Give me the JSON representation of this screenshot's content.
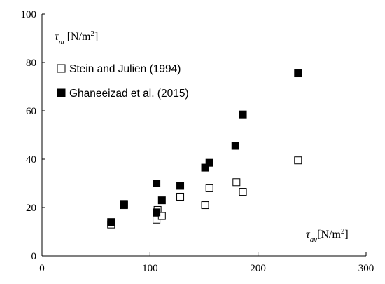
{
  "chart_data": {
    "type": "scatter",
    "xlim": [
      0,
      300
    ],
    "ylim": [
      0,
      100
    ],
    "x_ticks": [
      0,
      100,
      200,
      300
    ],
    "y_ticks": [
      0,
      20,
      40,
      60,
      80,
      100
    ],
    "grid": false,
    "legend_position": "top-left",
    "x_axis_label": {
      "symbol": "τ",
      "subscript": "av",
      "unit": "[N/m",
      "sup": "2",
      "close": "]"
    },
    "y_axis_label": {
      "symbol": "τ",
      "subscript": "m",
      "unit": " [N/m",
      "sup": "2",
      "close": "]"
    },
    "series": [
      {
        "name": "Stein and Julien (1994)",
        "marker": "hollow-square",
        "color": "#000000",
        "points": [
          {
            "x": 64,
            "y": 13
          },
          {
            "x": 76,
            "y": 21
          },
          {
            "x": 106,
            "y": 15
          },
          {
            "x": 107,
            "y": 19
          },
          {
            "x": 111,
            "y": 16.5
          },
          {
            "x": 128,
            "y": 24.5
          },
          {
            "x": 151,
            "y": 21
          },
          {
            "x": 155,
            "y": 28
          },
          {
            "x": 180,
            "y": 30.5
          },
          {
            "x": 186,
            "y": 26.5
          },
          {
            "x": 237,
            "y": 39.5
          }
        ]
      },
      {
        "name": "Ghaneeizad et al. (2015)",
        "marker": "filled-square",
        "color": "#000000",
        "points": [
          {
            "x": 64,
            "y": 14
          },
          {
            "x": 76,
            "y": 21.5
          },
          {
            "x": 106,
            "y": 18
          },
          {
            "x": 106,
            "y": 30
          },
          {
            "x": 111,
            "y": 23
          },
          {
            "x": 128,
            "y": 29
          },
          {
            "x": 151,
            "y": 36.5
          },
          {
            "x": 155,
            "y": 38.5
          },
          {
            "x": 179,
            "y": 45.5
          },
          {
            "x": 186,
            "y": 58.5
          },
          {
            "x": 237,
            "y": 75.5
          }
        ]
      }
    ]
  }
}
